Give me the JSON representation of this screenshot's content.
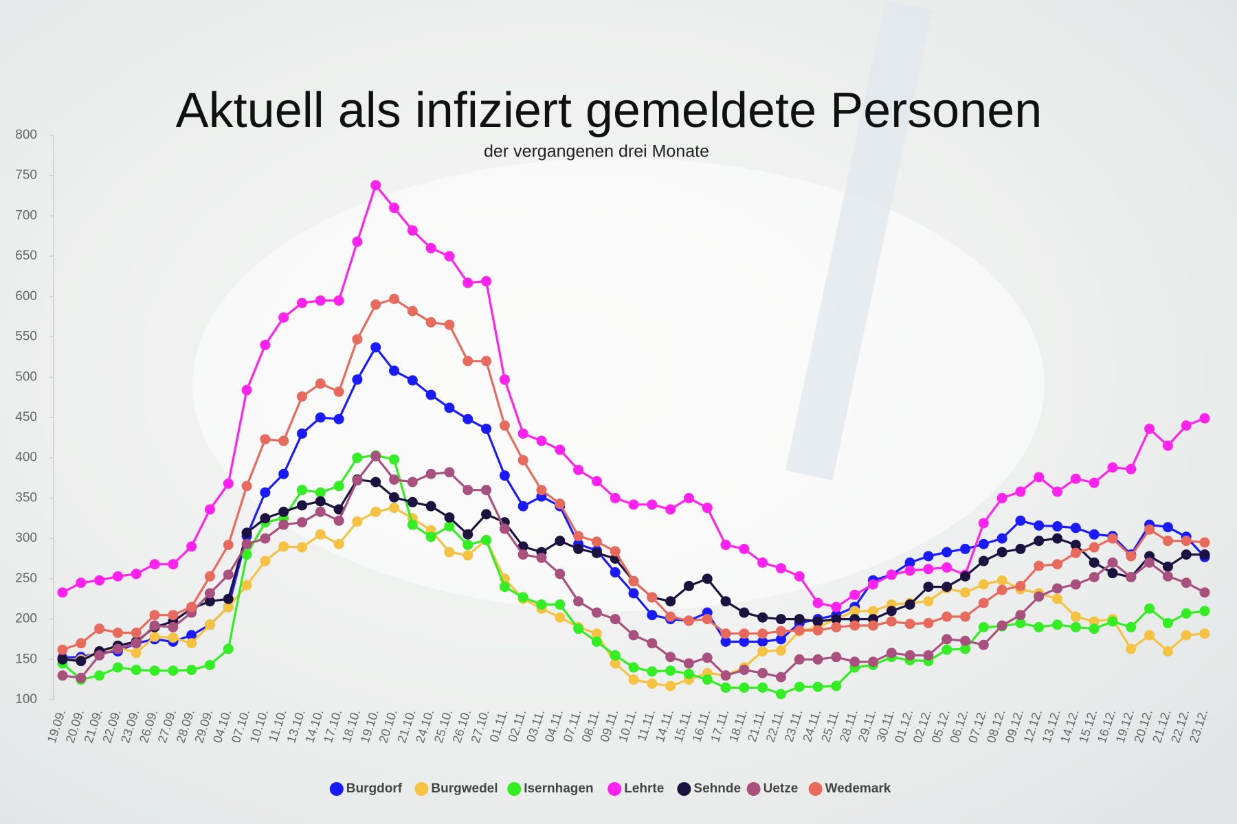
{
  "chart_data": {
    "type": "line",
    "title": "Aktuell als infiziert gemeldete Personen",
    "subtitle": "der vergangenen drei Monate",
    "categories": [
      "19.09.",
      "20.09.",
      "21.09.",
      "22.09.",
      "23.09.",
      "26.09.",
      "27.09.",
      "28.09.",
      "29.09.",
      "04.10.",
      "07.10.",
      "10.10.",
      "11.10.",
      "13.10.",
      "14.10.",
      "17.10.",
      "18.10.",
      "19.10.",
      "20.10.",
      "21.10.",
      "24.10.",
      "25.10.",
      "26.10.",
      "27.10.",
      "01.11.",
      "02.11.",
      "03.11.",
      "04.11.",
      "07.11.",
      "08.11.",
      "09.11.",
      "10.11.",
      "11.11.",
      "14.11.",
      "15.11.",
      "16.11.",
      "17.11.",
      "18.11.",
      "21.11.",
      "22.11.",
      "23.11.",
      "24.11.",
      "25.11.",
      "28.11.",
      "29.11.",
      "30.11.",
      "01.12.",
      "02.12.",
      "05.12.",
      "06.12.",
      "07.12.",
      "08.12.",
      "09.12.",
      "12.12.",
      "13.12.",
      "14.12.",
      "15.12.",
      "16.12.",
      "19.12.",
      "20.12.",
      "21.12.",
      "22.12.",
      "23.12."
    ],
    "series": [
      {
        "name": "Burgdorf",
        "color": "#1a1aff",
        "values": [
          152,
          153,
          158,
          160,
          170,
          175,
          172,
          180,
          193,
          215,
          303,
          357,
          380,
          430,
          450,
          448,
          497,
          537,
          508,
          496,
          478,
          462,
          448,
          436,
          378,
          340,
          352,
          340,
          293,
          285,
          258,
          232,
          205,
          200,
          198,
          208,
          172,
          172,
          172,
          175,
          195,
          200,
          205,
          215,
          248,
          255,
          270,
          278,
          283,
          287,
          293,
          300,
          322,
          316,
          315,
          313,
          305,
          303,
          280,
          317,
          314,
          302,
          277
        ]
      },
      {
        "name": "Burgwedel",
        "color": "#f5c242",
        "values": [
          150,
          150,
          160,
          165,
          158,
          178,
          177,
          170,
          193,
          215,
          242,
          272,
          290,
          289,
          305,
          293,
          321,
          333,
          338,
          325,
          310,
          283,
          279,
          298,
          250,
          225,
          213,
          202,
          190,
          182,
          145,
          125,
          120,
          117,
          125,
          133,
          130,
          140,
          160,
          161,
          185,
          190,
          200,
          210,
          210,
          218,
          220,
          222,
          238,
          233,
          243,
          248,
          237,
          232,
          225,
          203,
          197,
          200,
          163,
          180,
          160,
          180,
          182
        ]
      },
      {
        "name": "Isernhagen",
        "color": "#33ee22",
        "values": [
          145,
          125,
          130,
          140,
          137,
          136,
          136,
          137,
          143,
          163,
          280,
          320,
          325,
          360,
          357,
          365,
          400,
          403,
          398,
          317,
          302,
          315,
          292,
          298,
          240,
          227,
          218,
          218,
          188,
          172,
          155,
          140,
          135,
          136,
          132,
          125,
          115,
          115,
          115,
          107,
          116,
          116,
          117,
          140,
          143,
          153,
          149,
          148,
          162,
          163,
          190,
          191,
          195,
          190,
          193,
          190,
          188,
          197,
          190,
          213,
          195,
          207,
          210
        ]
      },
      {
        "name": "Lehrte",
        "color": "#ff22ee",
        "values": [
          233,
          245,
          248,
          253,
          256,
          268,
          268,
          290,
          336,
          368,
          484,
          540,
          574,
          592,
          595,
          595,
          668,
          738,
          710,
          682,
          660,
          650,
          617,
          619,
          497,
          430,
          421,
          410,
          385,
          371,
          350,
          342,
          342,
          336,
          350,
          338,
          292,
          287,
          270,
          263,
          253,
          220,
          215,
          230,
          243,
          255,
          260,
          262,
          264,
          255,
          319,
          350,
          358,
          376,
          358,
          374,
          369,
          388,
          386,
          436,
          415,
          440,
          449
        ]
      },
      {
        "name": "Sehnde",
        "color": "#1c1240",
        "values": [
          150,
          148,
          160,
          167,
          172,
          190,
          197,
          213,
          222,
          225,
          307,
          325,
          333,
          341,
          346,
          336,
          373,
          370,
          351,
          345,
          340,
          326,
          305,
          330,
          320,
          290,
          283,
          297,
          287,
          282,
          275,
          247,
          227,
          222,
          241,
          250,
          222,
          208,
          202,
          200,
          200,
          197,
          200,
          200,
          200,
          210,
          218,
          240,
          240,
          253,
          272,
          283,
          287,
          297,
          300,
          292,
          270,
          257,
          252,
          278,
          265,
          280,
          280
        ]
      },
      {
        "name": "Uetze",
        "color": "#a8507e",
        "values": [
          130,
          127,
          155,
          163,
          170,
          192,
          190,
          208,
          232,
          255,
          293,
          300,
          317,
          320,
          333,
          322,
          372,
          402,
          373,
          370,
          380,
          382,
          360,
          360,
          312,
          280,
          276,
          256,
          222,
          208,
          200,
          180,
          170,
          153,
          145,
          152,
          130,
          137,
          133,
          128,
          150,
          150,
          153,
          147,
          147,
          158,
          155,
          155,
          175,
          173,
          168,
          192,
          205,
          228,
          238,
          243,
          252,
          270,
          252,
          270,
          253,
          245,
          233
        ]
      },
      {
        "name": "Wedemark",
        "color": "#e86a5c",
        "values": [
          162,
          170,
          188,
          183,
          183,
          205,
          205,
          215,
          253,
          292,
          365,
          423,
          421,
          476,
          492,
          482,
          547,
          590,
          597,
          582,
          568,
          565,
          520,
          520,
          440,
          397,
          360,
          343,
          303,
          296,
          284,
          247,
          227,
          203,
          198,
          200,
          182,
          182,
          182,
          185,
          186,
          186,
          190,
          192,
          192,
          197,
          194,
          195,
          203,
          203,
          220,
          236,
          241,
          266,
          268,
          282,
          289,
          300,
          278,
          311,
          297,
          297,
          295
        ]
      }
    ],
    "ylim": [
      100,
      800
    ],
    "yticks": [
      100,
      150,
      200,
      250,
      300,
      350,
      400,
      450,
      500,
      550,
      600,
      650,
      700,
      750,
      800
    ],
    "grid": false
  }
}
